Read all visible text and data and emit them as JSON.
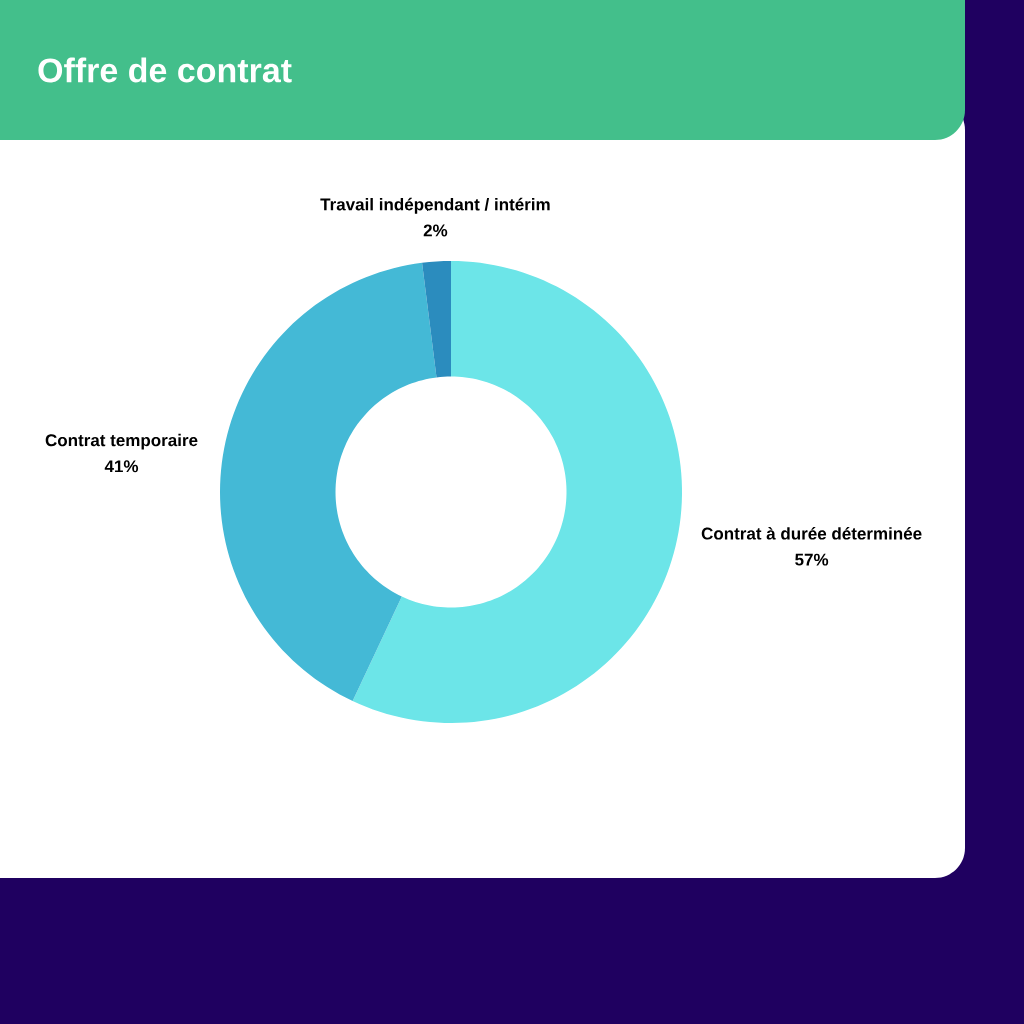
{
  "chart_data": {
    "type": "donut",
    "title": "Offre de contrat",
    "categories": [
      "Contrat à durée déterminée",
      "Contrat temporaire",
      "Travail indépendant / intérim"
    ],
    "values": [
      57,
      41,
      2
    ],
    "value_labels": [
      "57%",
      "41%",
      "2%"
    ],
    "colors": [
      "#6ce5e8",
      "#44b9d6",
      "#2b8cbe"
    ]
  }
}
